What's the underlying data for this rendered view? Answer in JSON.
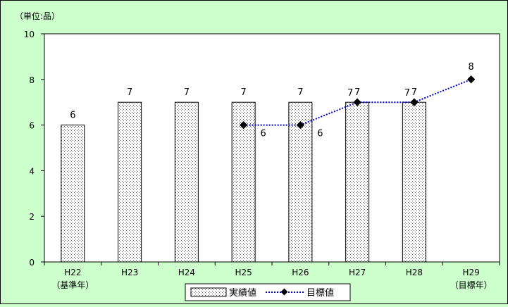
{
  "chart_data": {
    "type": "bar",
    "unit_label": "（単位:品）",
    "categories": [
      "H22",
      "H23",
      "H24",
      "H25",
      "H26",
      "H27",
      "H28",
      "H29"
    ],
    "category_sublabels": [
      "（基準年）",
      "",
      "",
      "",
      "",
      "",
      "",
      "（目標年）"
    ],
    "ylim": [
      0,
      10
    ],
    "yticks": [
      0,
      2,
      4,
      6,
      8,
      10
    ],
    "series": [
      {
        "name": "実績値",
        "kind": "bar",
        "values": [
          6,
          7,
          7,
          7,
          7,
          7,
          7,
          null
        ]
      },
      {
        "name": "目標値",
        "kind": "line",
        "style": "dotted",
        "marker": "diamond",
        "color": "#0000cc",
        "values": [
          null,
          null,
          null,
          6,
          6,
          7,
          7,
          8
        ]
      }
    ],
    "grid": false,
    "legend": "bottom-center",
    "colors": {
      "background": "#ccffcc",
      "plot_area": "#ffffff",
      "bar_fill": "#ffffff",
      "bar_dots": "#555555",
      "line": "#0000cc",
      "marker": "#000000"
    }
  }
}
